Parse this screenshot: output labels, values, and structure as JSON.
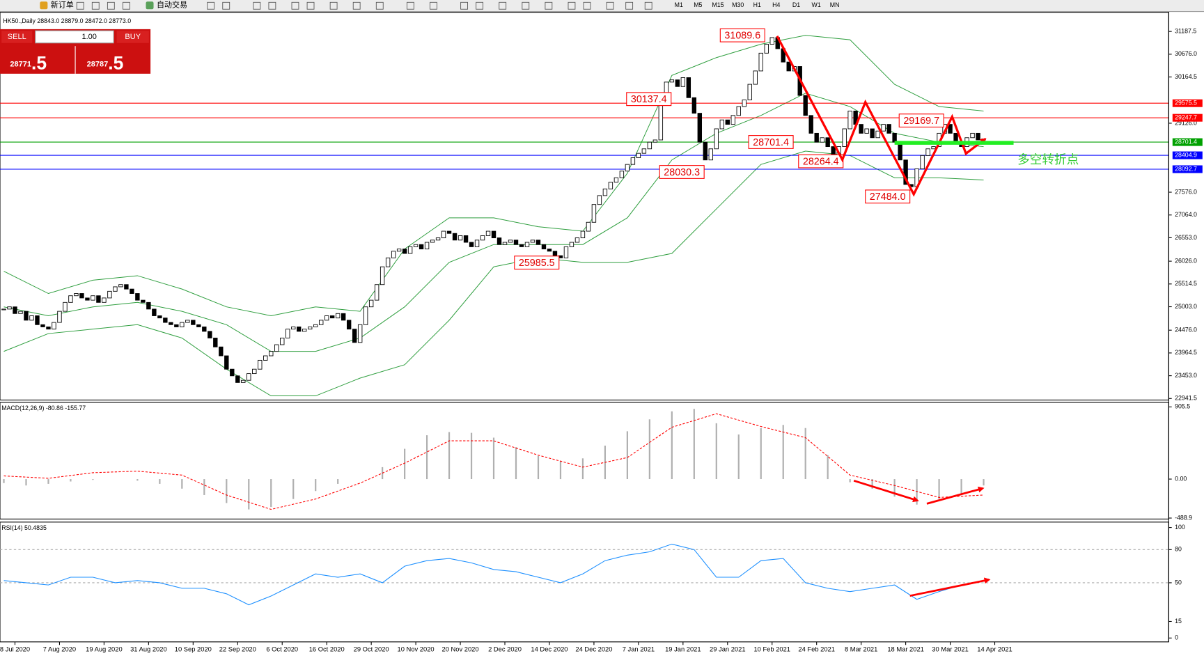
{
  "toolbar": {
    "items": [
      "新订单",
      "自动交易"
    ],
    "timeframes": [
      "M1",
      "M5",
      "M15",
      "M30",
      "H1",
      "H4",
      "D1",
      "W1",
      "MN"
    ]
  },
  "trade_panel": {
    "sell": "SELL",
    "buy": "BUY",
    "volume": "1.00",
    "sell_price": "28771",
    "sell_fraction": ".5",
    "buy_price": "28787",
    "buy_fraction": ".5"
  },
  "chart_data": [
    {
      "type": "candlestick",
      "title": "HK50.,Daily  28843.0 28879.0 28472.0 28773.0",
      "close": [
        24950,
        25000,
        24850,
        24900,
        24700,
        24800,
        24600,
        24550,
        24500,
        24650,
        24900,
        25100,
        25250,
        25300,
        25200,
        25150,
        25250,
        25100,
        25200,
        25350,
        25450,
        25500,
        25400,
        25300,
        25150,
        25100,
        24950,
        24800,
        24750,
        24650,
        24600,
        24550,
        24650,
        24700,
        24600,
        24550,
        24450,
        24300,
        24100,
        23900,
        23600,
        23450,
        23300,
        23350,
        23500,
        23600,
        23800,
        23900,
        24000,
        24150,
        24300,
        24500,
        24550,
        24450,
        24500,
        24550,
        24600,
        24700,
        24800,
        24750,
        24850,
        24700,
        24500,
        24200,
        24600,
        25000,
        25150,
        25500,
        25900,
        26100,
        26250,
        26300,
        26200,
        26350,
        26400,
        26300,
        26450,
        26500,
        26550,
        26700,
        26650,
        26500,
        26600,
        26450,
        26350,
        26500,
        26600,
        26700,
        26550,
        26400,
        26450,
        26500,
        26400,
        26350,
        26450,
        26500,
        26400,
        26300,
        26250,
        26150,
        26100,
        26350,
        26450,
        26550,
        26700,
        26900,
        27300,
        27500,
        27650,
        27800,
        27900,
        28050,
        28200,
        28350,
        28450,
        28550,
        28700,
        28750,
        29700,
        30050,
        30100,
        29950,
        30150,
        29700,
        29350,
        28700,
        28300,
        28550,
        29000,
        29200,
        29100,
        29300,
        29500,
        29650,
        30000,
        30300,
        30700,
        30900,
        31050,
        30800,
        30500,
        30300,
        30400,
        29750,
        29300,
        28900,
        28700,
        28800,
        28600,
        28300,
        28600,
        29000,
        29400,
        29100,
        28900,
        29000,
        28800,
        28950,
        29100,
        28900,
        28700,
        28300,
        27750,
        27700,
        28100,
        28400,
        28550,
        28600,
        28900,
        29100,
        28900,
        28700,
        28600,
        28800,
        28900,
        28750,
        28773
      ],
      "bands": {
        "color": "#2e9e3e",
        "x": [
          0,
          8,
          16,
          24,
          32,
          40,
          48,
          56,
          64,
          72,
          80,
          88,
          96,
          104,
          112,
          120,
          128,
          136,
          144,
          152,
          160,
          168,
          176
        ],
        "upper": [
          25800,
          25300,
          25600,
          25700,
          25400,
          25000,
          24800,
          25000,
          24900,
          26300,
          27000,
          27000,
          26800,
          26700,
          28000,
          30200,
          30600,
          30900,
          31100,
          31000,
          30000,
          29500,
          29400
        ],
        "middle": [
          25000,
          24800,
          25000,
          25100,
          24900,
          24600,
          24000,
          24000,
          24300,
          25000,
          26000,
          26400,
          26400,
          26400,
          27000,
          28300,
          28900,
          29300,
          29800,
          29500,
          28900,
          28700,
          28600
        ],
        "lower": [
          24000,
          24400,
          24500,
          24600,
          24300,
          23600,
          23000,
          23000,
          23400,
          23700,
          24700,
          25900,
          26100,
          26000,
          26000,
          26200,
          27200,
          28200,
          28500,
          28400,
          27900,
          27900,
          27850
        ]
      },
      "levels": [
        {
          "value": 29575.5,
          "color": "#ff0000"
        },
        {
          "value": 29247.7,
          "color": "#ff0000"
        },
        {
          "value": 28701.4,
          "color": "#00a000"
        },
        {
          "value": 28404.9,
          "color": "#0000ff"
        },
        {
          "value": 28092.7,
          "color": "#0000ff"
        }
      ],
      "annotations": [
        "31089.6",
        "30137.4",
        "28701.4",
        "28030.3",
        "28264.4",
        "29169.7",
        "27484.0",
        "25985.5"
      ],
      "note": "多空转折点",
      "ylim": [
        22907,
        31618
      ],
      "yticks": [
        31187.5,
        {
          "value": 30676,
          "label": "30676.0"
        },
        30164.5,
        {
          "value": 29126,
          "label": "29126.0"
        },
        {
          "value": 27576,
          "label": "27576.0"
        },
        {
          "value": 27064,
          "label": "27064.0"
        },
        {
          "value": 26553,
          "label": "26553.0"
        },
        {
          "value": 26026,
          "label": "26026.0"
        },
        25514.5,
        {
          "value": 25003,
          "label": "25003.0"
        },
        {
          "value": 24476,
          "label": "24476.0"
        },
        23964.5,
        {
          "value": 23453,
          "label": "23453.0"
        },
        22941.5
      ],
      "xticks": [
        {
          "value": 2,
          "label": "8 Jul 2020"
        },
        {
          "value": 10,
          "label": "7 Aug 2020"
        },
        {
          "value": 18,
          "label": "19 Aug 2020"
        },
        {
          "value": 26,
          "label": "31 Aug 2020"
        },
        {
          "value": 34,
          "label": "10 Sep 2020"
        },
        {
          "value": 42,
          "label": "22 Sep 2020"
        },
        {
          "value": 50,
          "label": "6 Oct 2020"
        },
        {
          "value": 58,
          "label": "16 Oct 2020"
        },
        {
          "value": 66,
          "label": "29 Oct 2020"
        },
        {
          "value": 74,
          "label": "10 Nov 2020"
        },
        {
          "value": 82,
          "label": "20 Nov 2020"
        },
        {
          "value": 90,
          "label": "2 Dec 2020"
        },
        {
          "value": 98,
          "label": "14 Dec 2020"
        },
        {
          "value": 106,
          "label": "24 Dec 2020"
        },
        {
          "value": 114,
          "label": "7 Jan 2021"
        },
        {
          "value": 122,
          "label": "19 Jan 2021"
        },
        {
          "value": 130,
          "label": "29 Jan 2021"
        },
        {
          "value": 138,
          "label": "10 Feb 2021"
        },
        {
          "value": 146,
          "label": "24 Feb 2021"
        },
        {
          "value": 154,
          "label": "8 Mar 2021"
        },
        {
          "value": 162,
          "label": "18 Mar 2021"
        },
        {
          "value": 170,
          "label": "30 Mar 2021"
        },
        {
          "value": 178,
          "label": "14 Apr 2021"
        }
      ]
    },
    {
      "type": "macd",
      "title": "MACD(12,26,9) -80.86 -155.77",
      "x": [
        0,
        4,
        8,
        12,
        16,
        20,
        24,
        28,
        32,
        36,
        40,
        44,
        48,
        52,
        56,
        60,
        64,
        68,
        72,
        76,
        80,
        84,
        88,
        92,
        96,
        100,
        104,
        108,
        112,
        116,
        120,
        124,
        128,
        132,
        136,
        140,
        144,
        148,
        152,
        156,
        160,
        164,
        168,
        172,
        176
      ],
      "histogram": [
        -50,
        -80,
        -60,
        -30,
        -10,
        0,
        -20,
        -60,
        -120,
        -200,
        -300,
        -380,
        -350,
        -250,
        -150,
        -60,
        0,
        150,
        380,
        550,
        590,
        580,
        520,
        400,
        290,
        230,
        260,
        420,
        600,
        750,
        850,
        880,
        700,
        560,
        640,
        680,
        640,
        300,
        -40,
        -120,
        -220,
        -320,
        -250,
        -180,
        -80
      ],
      "signal_x": [
        0,
        8,
        16,
        24,
        32,
        40,
        48,
        56,
        64,
        72,
        80,
        88,
        96,
        104,
        112,
        120,
        128,
        136,
        144,
        152,
        160,
        168,
        176
      ],
      "signal": [
        40,
        10,
        80,
        100,
        50,
        -200,
        -380,
        -250,
        -50,
        200,
        480,
        480,
        300,
        150,
        270,
        650,
        820,
        660,
        520,
        50,
        -80,
        -230,
        -200
      ],
      "ylim": [
        -501,
        963
      ],
      "yticks": [
        905.5,
        {
          "value": 0,
          "label": "0.00"
        },
        -488.9
      ]
    },
    {
      "type": "line",
      "title": "RSI(14) 50.4835",
      "color": "#1e90ff",
      "x": [
        0,
        4,
        8,
        12,
        16,
        20,
        24,
        28,
        32,
        36,
        40,
        44,
        48,
        52,
        56,
        60,
        64,
        68,
        72,
        76,
        80,
        84,
        88,
        92,
        96,
        100,
        104,
        108,
        112,
        116,
        120,
        124,
        128,
        132,
        136,
        140,
        144,
        148,
        152,
        156,
        160,
        164,
        168,
        172,
        176
      ],
      "values": [
        52,
        50,
        48,
        55,
        55,
        50,
        52,
        50,
        45,
        45,
        40,
        30,
        38,
        48,
        58,
        55,
        58,
        50,
        65,
        70,
        72,
        68,
        62,
        60,
        55,
        50,
        58,
        70,
        75,
        78,
        85,
        80,
        55,
        55,
        70,
        72,
        50,
        45,
        42,
        45,
        48,
        35,
        42,
        48,
        52
      ],
      "levels": [
        80,
        50
      ],
      "ylim": [
        -3.5,
        104.9
      ],
      "yticks": [
        100,
        80,
        50,
        15,
        0
      ]
    }
  ]
}
